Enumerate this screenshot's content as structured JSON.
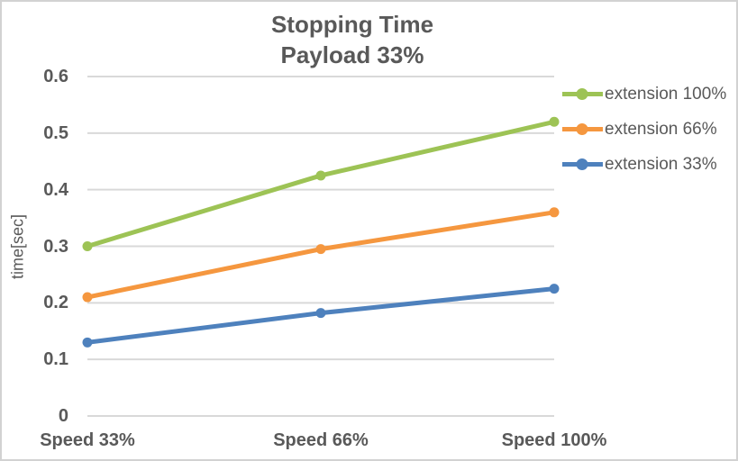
{
  "chart_data": {
    "type": "line",
    "title": "Stopping Time Payload 33%",
    "title_lines": [
      "Stopping Time",
      "Payload 33%"
    ],
    "ylabel": "time[sec]",
    "xlabel": "",
    "categories": [
      "Speed 33%",
      "Speed 66%",
      "Speed 100%"
    ],
    "series": [
      {
        "name": "extension 100%",
        "color": "#9DC355",
        "values": [
          0.3,
          0.425,
          0.52
        ]
      },
      {
        "name": "extension 66%",
        "color": "#F5973F",
        "values": [
          0.21,
          0.295,
          0.36
        ]
      },
      {
        "name": "extension 33%",
        "color": "#4E81BD",
        "values": [
          0.13,
          0.182,
          0.225
        ]
      }
    ],
    "ylim": [
      0,
      0.6
    ],
    "y_tick_labels": [
      "0",
      "0.1",
      "0.2",
      "0.3",
      "0.4",
      "0.5",
      "0.6"
    ],
    "grid": true,
    "legend_position": "right",
    "colors": {
      "text": "#595959",
      "gridline": "#D9D9D9",
      "border": "#D2D2D2",
      "background": "#FFFFFF"
    }
  }
}
